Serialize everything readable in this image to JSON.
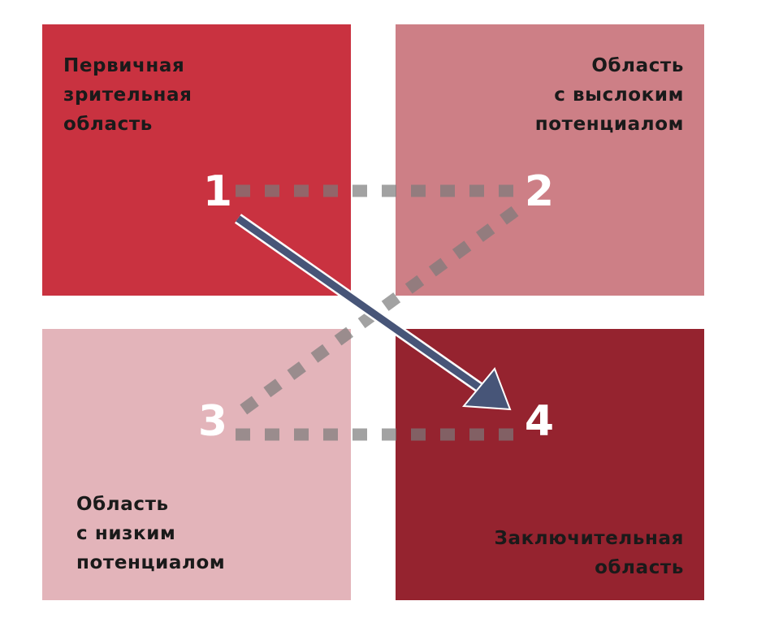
{
  "quadrants": [
    {
      "id": 1,
      "number": "1",
      "label_lines": [
        "Первичная",
        "зрительная",
        "область"
      ],
      "color": "#c93240"
    },
    {
      "id": 2,
      "number": "2",
      "label_lines": [
        "Область",
        "с выслоким",
        "потенциалом"
      ],
      "color": "#cd7f86"
    },
    {
      "id": 3,
      "number": "3",
      "label_lines": [
        "Область",
        "с низким",
        "потенциалом"
      ],
      "color": "#e3b4ba"
    },
    {
      "id": 4,
      "number": "4",
      "label_lines": [
        "Заключительная",
        "область"
      ],
      "color": "#95232f"
    }
  ],
  "connectors": [
    {
      "from": "1",
      "to": "2",
      "style": "dashed"
    },
    {
      "from": "2",
      "to": "3",
      "style": "dashed"
    },
    {
      "from": "3",
      "to": "4",
      "style": "dashed"
    },
    {
      "from": "1",
      "to": "4",
      "style": "arrow",
      "color": "#475578"
    }
  ],
  "colors": {
    "dash": "#7a7a7a",
    "arrow": "#475578",
    "arrow_outline": "#ffffff",
    "number": "#ffffff"
  }
}
